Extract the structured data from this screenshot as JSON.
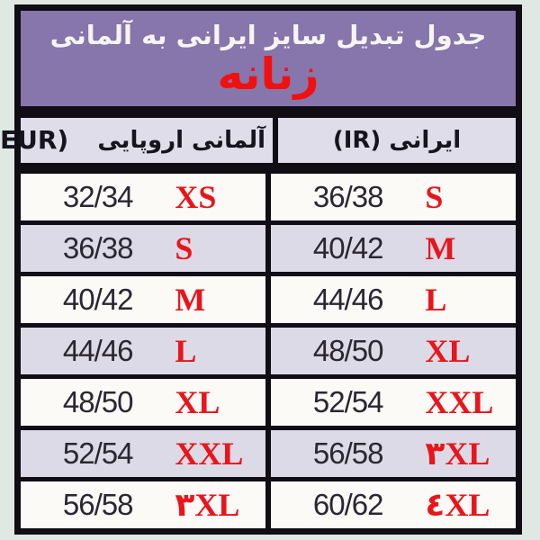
{
  "banner": {
    "title": "جدول تبدیل سایز ایرانی به آلمانی",
    "subtitle": "زنانه"
  },
  "columns": {
    "left_latin": "EUR)",
    "left_fa": "آلمانی اروپایی",
    "right": "ایرانی (IR)"
  },
  "rows": [
    {
      "eur_size": "32/34",
      "eur_label": "XS",
      "ir_size": "36/38",
      "ir_label": "S"
    },
    {
      "eur_size": "36/38",
      "eur_label": "S",
      "ir_size": "40/42",
      "ir_label": "M"
    },
    {
      "eur_size": "40/42",
      "eur_label": "M",
      "ir_size": "44/46",
      "ir_label": "L"
    },
    {
      "eur_size": "44/46",
      "eur_label": "L",
      "ir_size": "48/50",
      "ir_label": "XL"
    },
    {
      "eur_size": "48/50",
      "eur_label": "XL",
      "ir_size": "52/54",
      "ir_label": "XXL"
    },
    {
      "eur_size": "52/54",
      "eur_label": "XXL",
      "ir_size": "56/58",
      "ir_label": "۳XL"
    },
    {
      "eur_size": "56/58",
      "eur_label": "۳XL",
      "ir_size": "60/62",
      "ir_label": "٤XL"
    }
  ],
  "colors": {
    "page_bg": "#dfe8e2",
    "banner_purple": "#8676ac",
    "banner_title_text": "#f7f4f2",
    "red_accent": "#e9151b",
    "subtitle_red": "#f2100f",
    "header_cell_bg": "#dfdde9",
    "row_light": "#fbfaf7",
    "row_dark": "#dcdae6",
    "border_black": "#100d15",
    "number_text": "#2a2733"
  }
}
